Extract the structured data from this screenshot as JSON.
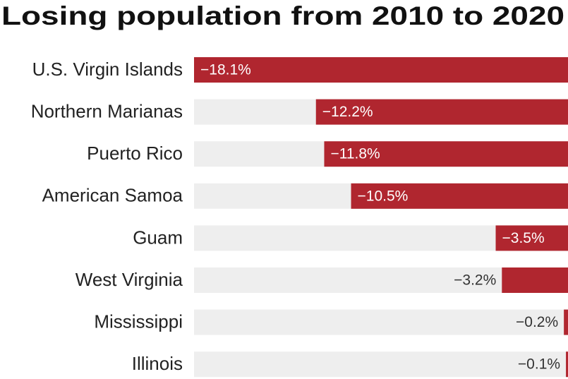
{
  "chart_data": {
    "type": "bar",
    "orientation": "horizontal",
    "title": "Losing population from 2010 to 2020",
    "categories": [
      "U.S. Virgin Islands",
      "Northern Marianas",
      "Puerto Rico",
      "American Samoa",
      "Guam",
      "West Virginia",
      "Mississippi",
      "Illinois"
    ],
    "values": [
      -18.1,
      -12.2,
      -11.8,
      -10.5,
      -3.5,
      -3.2,
      -0.2,
      -0.1
    ],
    "value_labels": [
      "−18.1%",
      "−12.2%",
      "−11.8%",
      "−10.5%",
      "−3.5%",
      "−3.2%",
      "−0.2%",
      "−0.1%"
    ],
    "color": "#b0262f",
    "xlim": [
      -18.1,
      0
    ]
  }
}
